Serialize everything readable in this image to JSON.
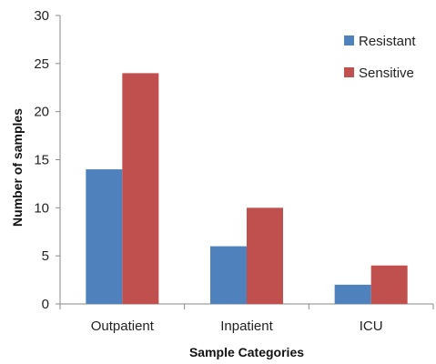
{
  "chart_data": {
    "type": "bar",
    "categories": [
      "Outpatient",
      "Inpatient",
      "ICU"
    ],
    "series": [
      {
        "name": "Resistant",
        "values": [
          14,
          6,
          2
        ],
        "color": "#4f81bd"
      },
      {
        "name": "Sensitive",
        "values": [
          24,
          10,
          4
        ],
        "color": "#c0504d"
      }
    ],
    "xlabel": "Sample Categories",
    "ylabel": "Number of samples",
    "ylim": [
      0,
      30
    ],
    "yticks": [
      0,
      5,
      10,
      15,
      20,
      25,
      30
    ],
    "grid": false,
    "legend_position": "top-right"
  }
}
